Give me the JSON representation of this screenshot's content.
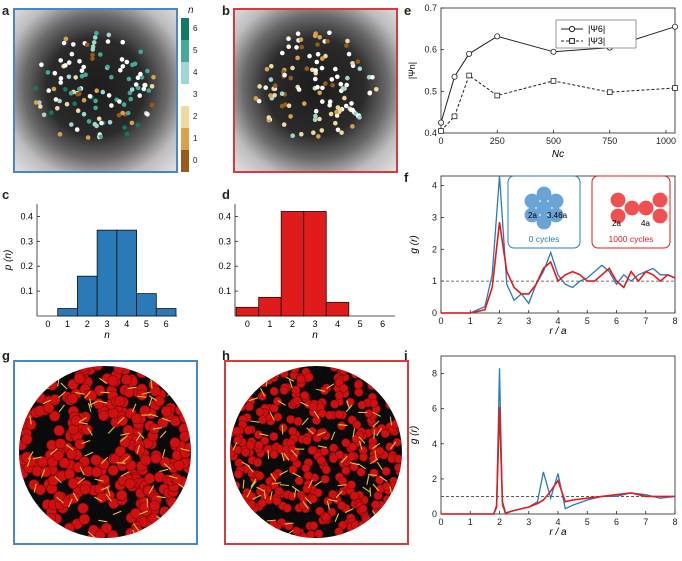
{
  "colors": {
    "blue": "#2a7ab8",
    "red": "#e01b1b",
    "frame_blue": "#4a86c5",
    "frame_red": "#d63b3b",
    "teal_dark": "#0f7a66",
    "teal_mid": "#45a99a",
    "teal_light": "#9fd8ce",
    "gold_light": "#f0d9a0",
    "gold_mid": "#d9a24a",
    "brown": "#9a5a18"
  },
  "panels": {
    "a": "a",
    "b": "b",
    "c": "c",
    "d": "d",
    "e": "e",
    "f": "f",
    "g": "g",
    "h": "h",
    "i": "i"
  },
  "colorbar": {
    "title": "n",
    "ticks": [
      "6",
      "5",
      "4",
      "3",
      "2",
      "1",
      "0"
    ]
  },
  "chart_data": [
    {
      "id": "c",
      "type": "bar",
      "categories": [
        "0",
        "1",
        "2",
        "3",
        "4",
        "5",
        "6"
      ],
      "values": [
        0.0,
        0.03,
        0.16,
        0.345,
        0.345,
        0.09,
        0.03
      ],
      "ylim": [
        0,
        0.45
      ],
      "yticks": [
        "0.1",
        "0.2",
        "0.3",
        "0.4"
      ],
      "xlabel": "n",
      "ylabel": "p (n)"
    },
    {
      "id": "d",
      "type": "bar",
      "categories": [
        "0",
        "1",
        "2",
        "3",
        "4",
        "5",
        "6"
      ],
      "values": [
        0.035,
        0.075,
        0.42,
        0.42,
        0.055,
        0.0,
        0.0
      ],
      "ylim": [
        0,
        0.45
      ],
      "yticks": [
        "0.1",
        "0.2",
        "0.3",
        "0.4"
      ],
      "xlabel": "n",
      "ylabel": "p (n)"
    },
    {
      "id": "e",
      "type": "line",
      "x": [
        0,
        60,
        125,
        250,
        500,
        750,
        1040
      ],
      "series": [
        {
          "name": "|Ψ6|",
          "values": [
            0.425,
            0.535,
            0.59,
            0.632,
            0.595,
            0.605,
            0.655
          ]
        },
        {
          "name": "|Ψ3|",
          "values": [
            0.405,
            0.44,
            0.538,
            0.49,
            0.525,
            0.498,
            0.508
          ]
        }
      ],
      "xlim": [
        0,
        1040
      ],
      "ylim": [
        0.4,
        0.7
      ],
      "xticks": [
        "0",
        "250",
        "500",
        "750",
        "1000"
      ],
      "yticks": [
        "0.4",
        "0.5",
        "0.6",
        "0.7"
      ],
      "xlabel": "Nc",
      "ylabel": "|Ψn|",
      "legend": [
        "|Ψ6|",
        "|Ψ3|"
      ]
    },
    {
      "id": "f",
      "type": "line",
      "x": [
        0,
        0.5,
        1.0,
        1.5,
        1.75,
        2.0,
        2.25,
        2.5,
        2.75,
        3.0,
        3.25,
        3.5,
        3.75,
        4.0,
        4.25,
        4.5,
        4.75,
        5.0,
        5.25,
        5.5,
        5.75,
        6.0,
        6.25,
        6.5,
        6.75,
        7.0,
        7.25,
        7.5,
        7.75,
        8.0
      ],
      "series": [
        {
          "name": "0 cycles",
          "values": [
            0,
            0,
            0,
            0.2,
            1.2,
            4.3,
            0.9,
            0.4,
            0.6,
            0.3,
            0.9,
            1.3,
            1.9,
            1.2,
            0.9,
            0.8,
            1.0,
            1.1,
            1.3,
            1.5,
            1.3,
            0.9,
            1.2,
            1.0,
            1.2,
            1.3,
            1.4,
            1.2,
            1.2,
            1.1
          ]
        },
        {
          "name": "1000 cycles",
          "values": [
            0,
            0,
            0,
            0.1,
            0.8,
            2.85,
            1.3,
            0.8,
            0.6,
            0.6,
            0.9,
            1.4,
            1.6,
            1.0,
            1.2,
            1.3,
            1.2,
            1.0,
            1.0,
            1.2,
            1.4,
            1.0,
            0.8,
            1.3,
            1.0,
            1.3,
            1.2,
            1.0,
            1.2,
            1.1
          ]
        }
      ],
      "xlim": [
        0,
        8
      ],
      "ylim": [
        0,
        4.3
      ],
      "xticks": [
        "0",
        "1",
        "2",
        "3",
        "4",
        "5",
        "6",
        "7",
        "8"
      ],
      "yticks": [
        "0",
        "1",
        "2",
        "3",
        "4"
      ],
      "xlabel": "r / a",
      "ylabel": "g (r)",
      "reference_line": 1,
      "insets": {
        "left_caption": "0 cycles",
        "left_label_a": "2a",
        "left_label_b": "3.46a",
        "right_caption": "1000 cycles",
        "right_label_a": "2a",
        "right_label_b": "4a"
      }
    },
    {
      "id": "i",
      "type": "line",
      "x": [
        0,
        1.5,
        1.8,
        1.9,
        2.0,
        2.1,
        2.2,
        2.5,
        3.0,
        3.3,
        3.5,
        3.75,
        4.0,
        4.25,
        4.5,
        5.0,
        5.5,
        6.0,
        6.5,
        7.0,
        7.5,
        8.0
      ],
      "series": [
        {
          "name": "0 cycles",
          "values": [
            0,
            0,
            0,
            0.5,
            8.3,
            0.5,
            0.05,
            0.2,
            0.4,
            0.7,
            2.4,
            0.9,
            2.3,
            0.3,
            0.5,
            0.8,
            1.0,
            1.0,
            1.2,
            1.1,
            0.9,
            1.0
          ]
        },
        {
          "name": "1000 cycles",
          "values": [
            0,
            0,
            0,
            0.4,
            6.1,
            0.7,
            0.05,
            0.2,
            0.4,
            0.6,
            0.8,
            1.3,
            1.9,
            0.7,
            0.8,
            0.9,
            1.0,
            1.1,
            1.2,
            1.0,
            1.0,
            1.0
          ]
        }
      ],
      "xlim": [
        0,
        8
      ],
      "ylim": [
        0,
        9
      ],
      "xticks": [
        "0",
        "1",
        "2",
        "3",
        "4",
        "5",
        "6",
        "7",
        "8"
      ],
      "yticks": [
        "0",
        "2",
        "4",
        "6",
        "8"
      ],
      "xlabel": "r / a",
      "ylabel": "g (r)",
      "reference_line": 1
    }
  ]
}
